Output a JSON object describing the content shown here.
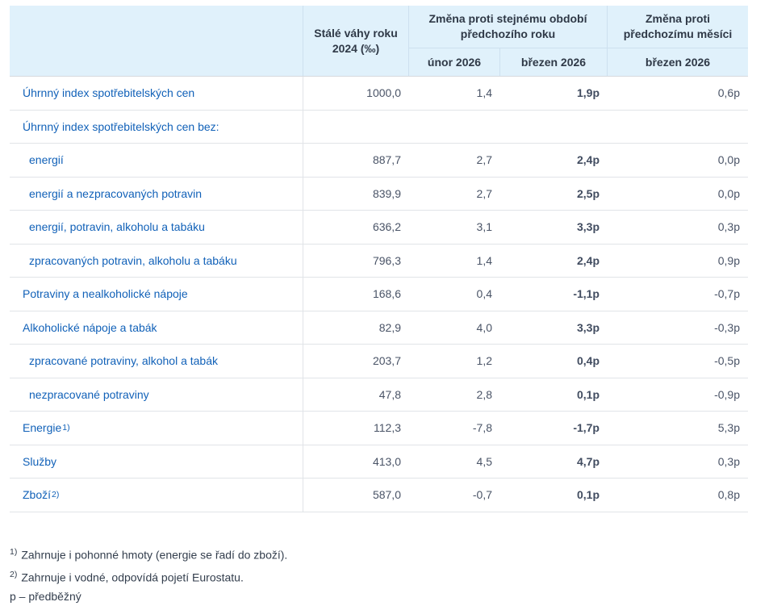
{
  "header": {
    "weights_label": "Stálé váhy roku 2024 (‰)",
    "group_yoy": "Změna proti stejnému období předchozího roku",
    "group_mom": "Změna proti předchozímu měsíci",
    "sub_yoy_feb": "únor 2026",
    "sub_yoy_mar": "březen 2026",
    "sub_mom_mar": "březen 2026"
  },
  "rows": [
    {
      "label": "Úhrnný index spotřebitelských cen",
      "weight": "1000,0",
      "feb": "1,4",
      "mar": "1,9p",
      "mom": "0,6p"
    },
    {
      "label": "Úhrnný index spotřebitelských cen bez:",
      "weight": "",
      "feb": "",
      "mar": "",
      "mom": ""
    },
    {
      "label": "energií",
      "weight": "887,7",
      "feb": "2,7",
      "mar": "2,4p",
      "mom": "0,0p"
    },
    {
      "label": "energií a nezpracovaných potravin",
      "weight": "839,9",
      "feb": "2,7",
      "mar": "2,5p",
      "mom": "0,0p"
    },
    {
      "label": "energií, potravin, alkoholu a tabáku",
      "weight": "636,2",
      "feb": "3,1",
      "mar": "3,3p",
      "mom": "0,3p"
    },
    {
      "label": "zpracovaných potravin, alkoholu a tabáku",
      "weight": "796,3",
      "feb": "1,4",
      "mar": "2,4p",
      "mom": "0,9p"
    },
    {
      "label": "Potraviny a nealkoholické nápoje",
      "weight": "168,6",
      "feb": "0,4",
      "mar": "-1,1p",
      "mom": "-0,7p"
    },
    {
      "label": "Alkoholické nápoje a tabák",
      "weight": "82,9",
      "feb": "4,0",
      "mar": "3,3p",
      "mom": "-0,3p"
    },
    {
      "label": "zpracované potraviny, alkohol a tabák",
      "weight": "203,7",
      "feb": "1,2",
      "mar": "0,4p",
      "mom": "-0,5p"
    },
    {
      "label": "nezpracované potraviny",
      "weight": "47,8",
      "feb": "2,8",
      "mar": "0,1p",
      "mom": "-0,9p"
    },
    {
      "label": "Energie",
      "sup": "1)",
      "weight": "112,3",
      "feb": "-7,8",
      "mar": "-1,7p",
      "mom": "5,3p"
    },
    {
      "label": "Služby",
      "weight": "413,0",
      "feb": "4,5",
      "mar": "4,7p",
      "mom": "0,3p"
    },
    {
      "label": "Zboží",
      "sup": "2)",
      "weight": "587,0",
      "feb": "-0,7",
      "mar": "0,1p",
      "mom": "0,8p"
    }
  ],
  "footnotes": {
    "fn1_sup": "1)",
    "fn1_text": "Zahrnuje i pohonné hmoty (energie se řadí do zboží).",
    "fn2_sup": "2)",
    "fn2_text": "Zahrnuje i vodné, odpovídá pojetí Eurostatu.",
    "p_note": "p – předběžný"
  },
  "colors": {
    "header_bg": "#e0f1fb",
    "label_blue": "#1161b8",
    "value_text": "#4a5467"
  }
}
